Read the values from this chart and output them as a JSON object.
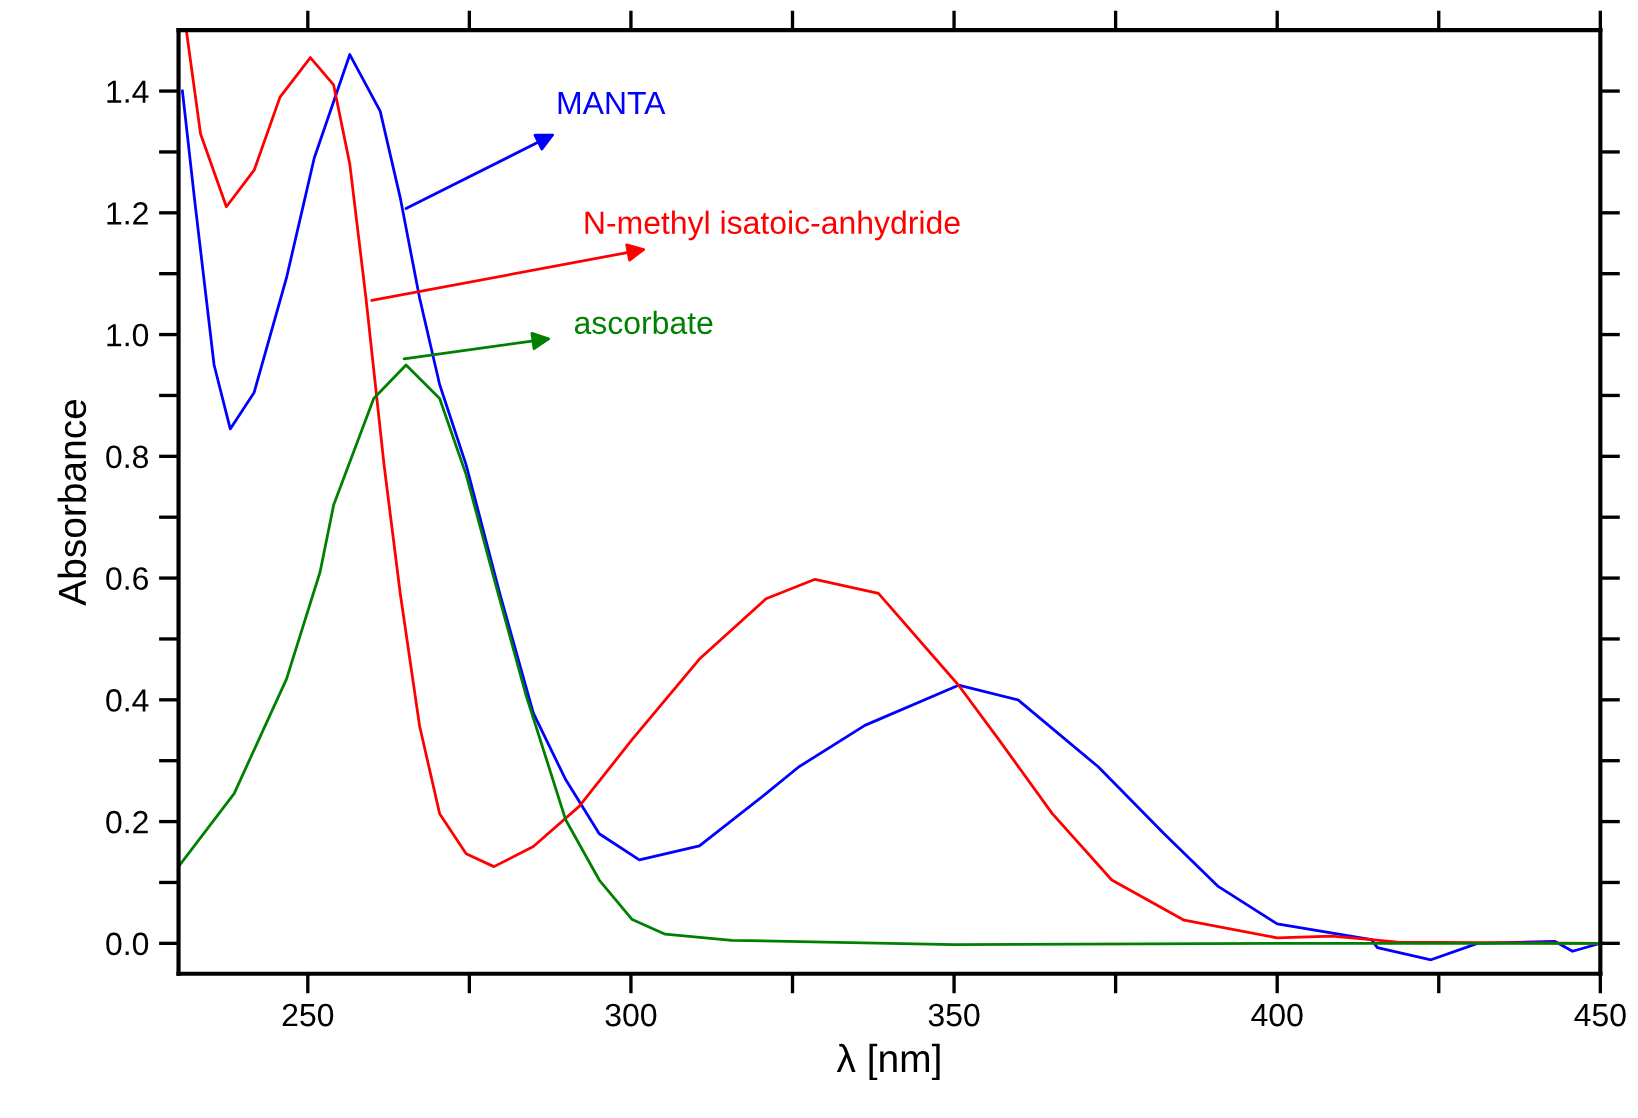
{
  "chart_data": {
    "type": "line",
    "xlabel": "λ [nm]",
    "ylabel": "Absorbance",
    "xlim": [
      230,
      450
    ],
    "ylim": [
      -0.05,
      1.5
    ],
    "xticks": [
      250,
      {
        "value": 275,
        "label": null
      },
      300,
      {
        "value": 325,
        "label": null
      },
      350,
      {
        "value": 375,
        "label": null
      },
      400,
      {
        "value": 425,
        "label": null
      },
      450
    ],
    "yticks": [
      {
        "value": 0,
        "label": "0.0"
      },
      {
        "value": 0.1,
        "label": null
      },
      {
        "value": 0.2,
        "label": "0.2"
      },
      {
        "value": 0.3,
        "label": null
      },
      {
        "value": 0.4,
        "label": "0.4"
      },
      {
        "value": 0.5,
        "label": null
      },
      {
        "value": 0.6,
        "label": "0.6"
      },
      {
        "value": 0.7,
        "label": null
      },
      {
        "value": 0.8,
        "label": "0.8"
      },
      {
        "value": 0.9,
        "label": null
      },
      {
        "value": 1.0,
        "label": "1.0"
      },
      {
        "value": 1.1,
        "label": null
      },
      {
        "value": 1.2,
        "label": "1.2"
      },
      {
        "value": 1.3,
        "label": null
      },
      {
        "value": 1.4,
        "label": "1.4"
      }
    ],
    "marker": "none",
    "line_style": "solid",
    "series": [
      {
        "color": "#0000ff",
        "x": [
          230.6,
          232.5,
          235.5,
          238,
          241.7,
          246.7,
          251,
          256.5,
          261.2,
          264.3,
          267.3,
          270.4,
          274.5,
          279.7,
          284.9,
          289.9,
          295.1,
          301.3,
          310.6,
          320.9,
          326,
          336.2,
          350.7,
          359.9,
          372.3,
          382.5,
          390.8,
          400,
          414.6,
          415.5,
          423.8,
          431,
          443,
          445.7,
          450
        ],
        "values": [
          1.4,
          1.22,
          0.95,
          0.845,
          0.905,
          1.093,
          1.29,
          1.46,
          1.367,
          1.225,
          1.06,
          0.918,
          0.786,
          0.575,
          0.378,
          0.269,
          0.18,
          0.137,
          0.16,
          0.246,
          0.29,
          0.358,
          0.424,
          0.4,
          0.29,
          0.18,
          0.094,
          0.032,
          0.006,
          -0.007,
          -0.027,
          0,
          0.003,
          -0.013,
          0
        ]
      },
      {
        "color": "#ff0000",
        "x": [
          231.2,
          233.4,
          237.4,
          241.7,
          245.7,
          250.4,
          254,
          256.5,
          259,
          261.8,
          264.3,
          267.3,
          270.4,
          274.5,
          278.8,
          284.9,
          292,
          300.2,
          310.6,
          320.9,
          328.5,
          338.3,
          350.7,
          356.9,
          365.2,
          374.4,
          385.6,
          400,
          408.4,
          414.6,
          418.6,
          450
        ],
        "values": [
          1.5,
          1.33,
          1.21,
          1.27,
          1.39,
          1.455,
          1.41,
          1.28,
          1.06,
          0.786,
          0.575,
          0.357,
          0.213,
          0.147,
          0.126,
          0.159,
          0.225,
          0.335,
          0.467,
          0.566,
          0.598,
          0.575,
          0.424,
          0.335,
          0.213,
          0.104,
          0.038,
          0.009,
          0.012,
          0.006,
          0.002,
          0
        ]
      },
      {
        "color": "#008000",
        "x": [
          230,
          238.6,
          246.7,
          251.9,
          254,
          260.2,
          265.2,
          270.4,
          274.5,
          278.8,
          283.7,
          289.9,
          295.1,
          300.2,
          305.3,
          315.6,
          330,
          350,
          400,
          450
        ],
        "values": [
          0.126,
          0.246,
          0.434,
          0.61,
          0.72,
          0.895,
          0.95,
          0.895,
          0.77,
          0.6,
          0.41,
          0.203,
          0.104,
          0.039,
          0.015,
          0.005,
          0.002,
          -0.002,
          0,
          0
        ]
      }
    ],
    "annotations": [
      {
        "text": "MANTA",
        "x": 265.2,
        "y": 1.207
      },
      {
        "text": "N-methyl isatoic-anhydride",
        "x": 259.9,
        "y": 1.056
      },
      {
        "text": "ascorbate",
        "x": 264.9,
        "y": 0.96
      }
    ]
  }
}
